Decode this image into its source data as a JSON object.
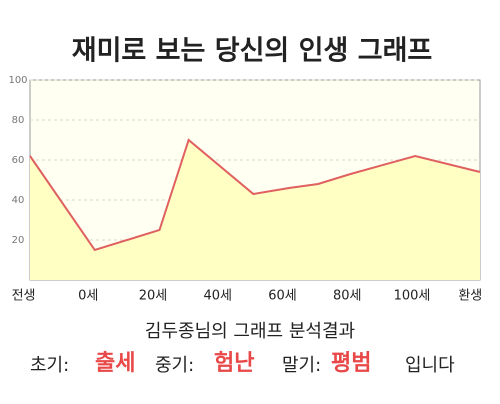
{
  "chart_data": {
    "type": "area",
    "title": "재미로 보는 당신의 인생 그래프",
    "x": [
      -18,
      2,
      22,
      31,
      51,
      62,
      71,
      81,
      101,
      121
    ],
    "values": [
      62,
      15,
      25,
      70,
      43,
      46,
      48,
      53,
      62,
      54
    ],
    "color": "#e06060",
    "fill": "#ffffc4",
    "xlim": [
      -18,
      121
    ],
    "xticks": [
      {
        "value": -20,
        "label": "전생"
      },
      {
        "value": 0,
        "label": "0세"
      },
      {
        "value": 20,
        "label": "20세"
      },
      {
        "value": 40,
        "label": "40세"
      },
      {
        "value": 60,
        "label": "60세"
      },
      {
        "value": 80,
        "label": "80세"
      },
      {
        "value": 100,
        "label": "100세"
      },
      {
        "value": 118,
        "label": "환생"
      }
    ],
    "ylim": [
      0,
      100
    ],
    "yticks": [
      20,
      40,
      60,
      80,
      100
    ],
    "grid": true
  },
  "summary": {
    "heading": "김두종님의 그래프 분석결과",
    "early_label": "초기:",
    "early": "출세",
    "middle_label": "중기:",
    "middle": "험난",
    "late_label": "말기:",
    "late": "평범",
    "ending": "입니다"
  }
}
